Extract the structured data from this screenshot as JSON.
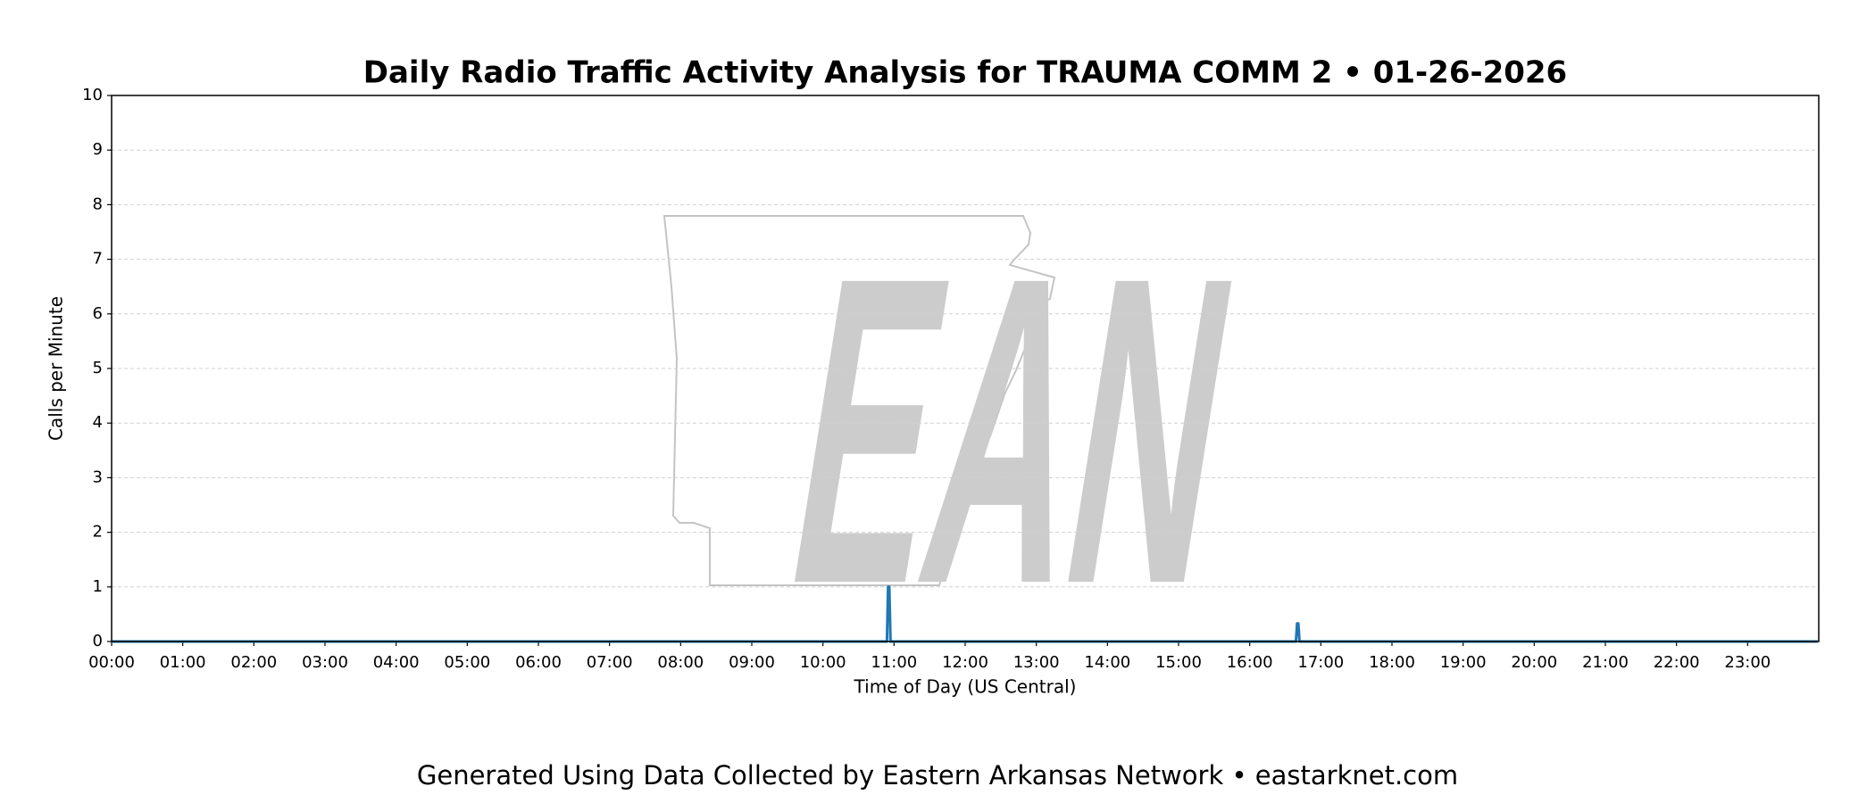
{
  "chart_data": {
    "type": "line",
    "title": "Daily Radio Traffic Activity Analysis for TRAUMA COMM 2 • 01-26-2026",
    "xlabel": "Time of Day (US Central)",
    "ylabel": "Calls per Minute",
    "watermark": "EAN",
    "x": [
      0,
      654,
      655,
      656,
      657,
      999,
      1000,
      1001,
      1002,
      1439
    ],
    "values": [
      0,
      0,
      1,
      1,
      0,
      0,
      0.33,
      0.33,
      0,
      0
    ],
    "color": "#1f77b4",
    "xlim": [
      0,
      1440
    ],
    "xticks": [
      {
        "value": 0,
        "label": "00:00"
      },
      {
        "value": 60,
        "label": "01:00"
      },
      {
        "value": 120,
        "label": "02:00"
      },
      {
        "value": 180,
        "label": "03:00"
      },
      {
        "value": 240,
        "label": "04:00"
      },
      {
        "value": 300,
        "label": "05:00"
      },
      {
        "value": 360,
        "label": "06:00"
      },
      {
        "value": 420,
        "label": "07:00"
      },
      {
        "value": 480,
        "label": "08:00"
      },
      {
        "value": 540,
        "label": "09:00"
      },
      {
        "value": 600,
        "label": "10:00"
      },
      {
        "value": 660,
        "label": "11:00"
      },
      {
        "value": 720,
        "label": "12:00"
      },
      {
        "value": 780,
        "label": "13:00"
      },
      {
        "value": 840,
        "label": "14:00"
      },
      {
        "value": 900,
        "label": "15:00"
      },
      {
        "value": 960,
        "label": "16:00"
      },
      {
        "value": 1020,
        "label": "17:00"
      },
      {
        "value": 1080,
        "label": "18:00"
      },
      {
        "value": 1140,
        "label": "19:00"
      },
      {
        "value": 1200,
        "label": "20:00"
      },
      {
        "value": 1260,
        "label": "21:00"
      },
      {
        "value": 1320,
        "label": "22:00"
      },
      {
        "value": 1380,
        "label": "23:00"
      }
    ],
    "ylim": [
      0,
      10
    ],
    "yticks": [
      0,
      1,
      2,
      3,
      4,
      5,
      6,
      7,
      8,
      9,
      10
    ],
    "grid": true
  },
  "footer": "Generated Using Data Collected by Eastern Arkansas Network • eastarknet.com"
}
